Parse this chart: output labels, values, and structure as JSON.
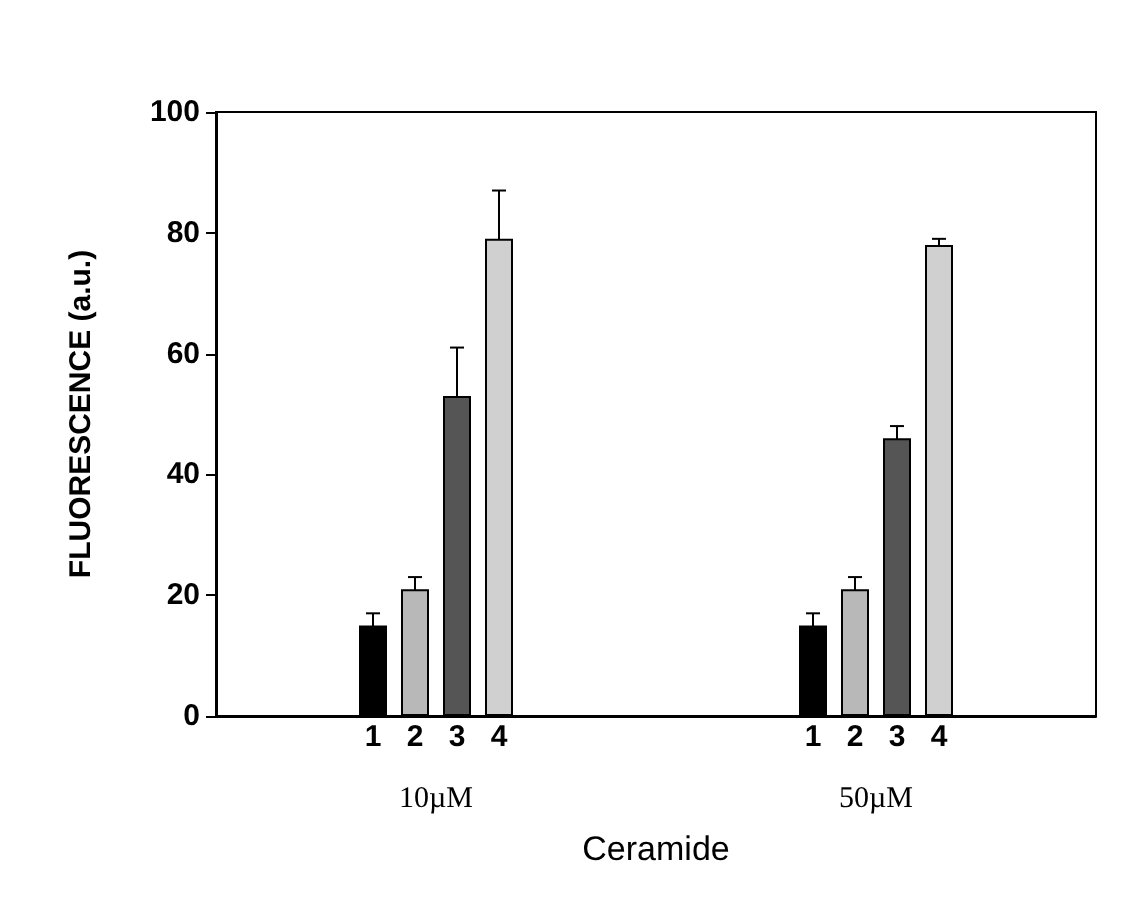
{
  "chart_data": {
    "type": "bar",
    "xlabel": "Ceramide",
    "ylabel": "FLUORESCENCE (a.u.)",
    "categories": [
      "10µM",
      "50µM"
    ],
    "series": [
      {
        "name": "1",
        "color": "#000000",
        "values": [
          15,
          15
        ],
        "errors": [
          2,
          2
        ]
      },
      {
        "name": "2",
        "color": "#b8b8b8",
        "values": [
          21,
          21
        ],
        "errors": [
          2,
          2
        ]
      },
      {
        "name": "3",
        "color": "#555555",
        "values": [
          53,
          46
        ],
        "errors": [
          8,
          2
        ]
      },
      {
        "name": "4",
        "color": "#d0d0d0",
        "values": [
          79,
          78
        ],
        "errors": [
          8,
          1
        ]
      }
    ],
    "ylim": [
      0,
      100
    ],
    "yticks": [
      0,
      20,
      40,
      60,
      80,
      100
    ],
    "grid": false,
    "legend": false
  }
}
